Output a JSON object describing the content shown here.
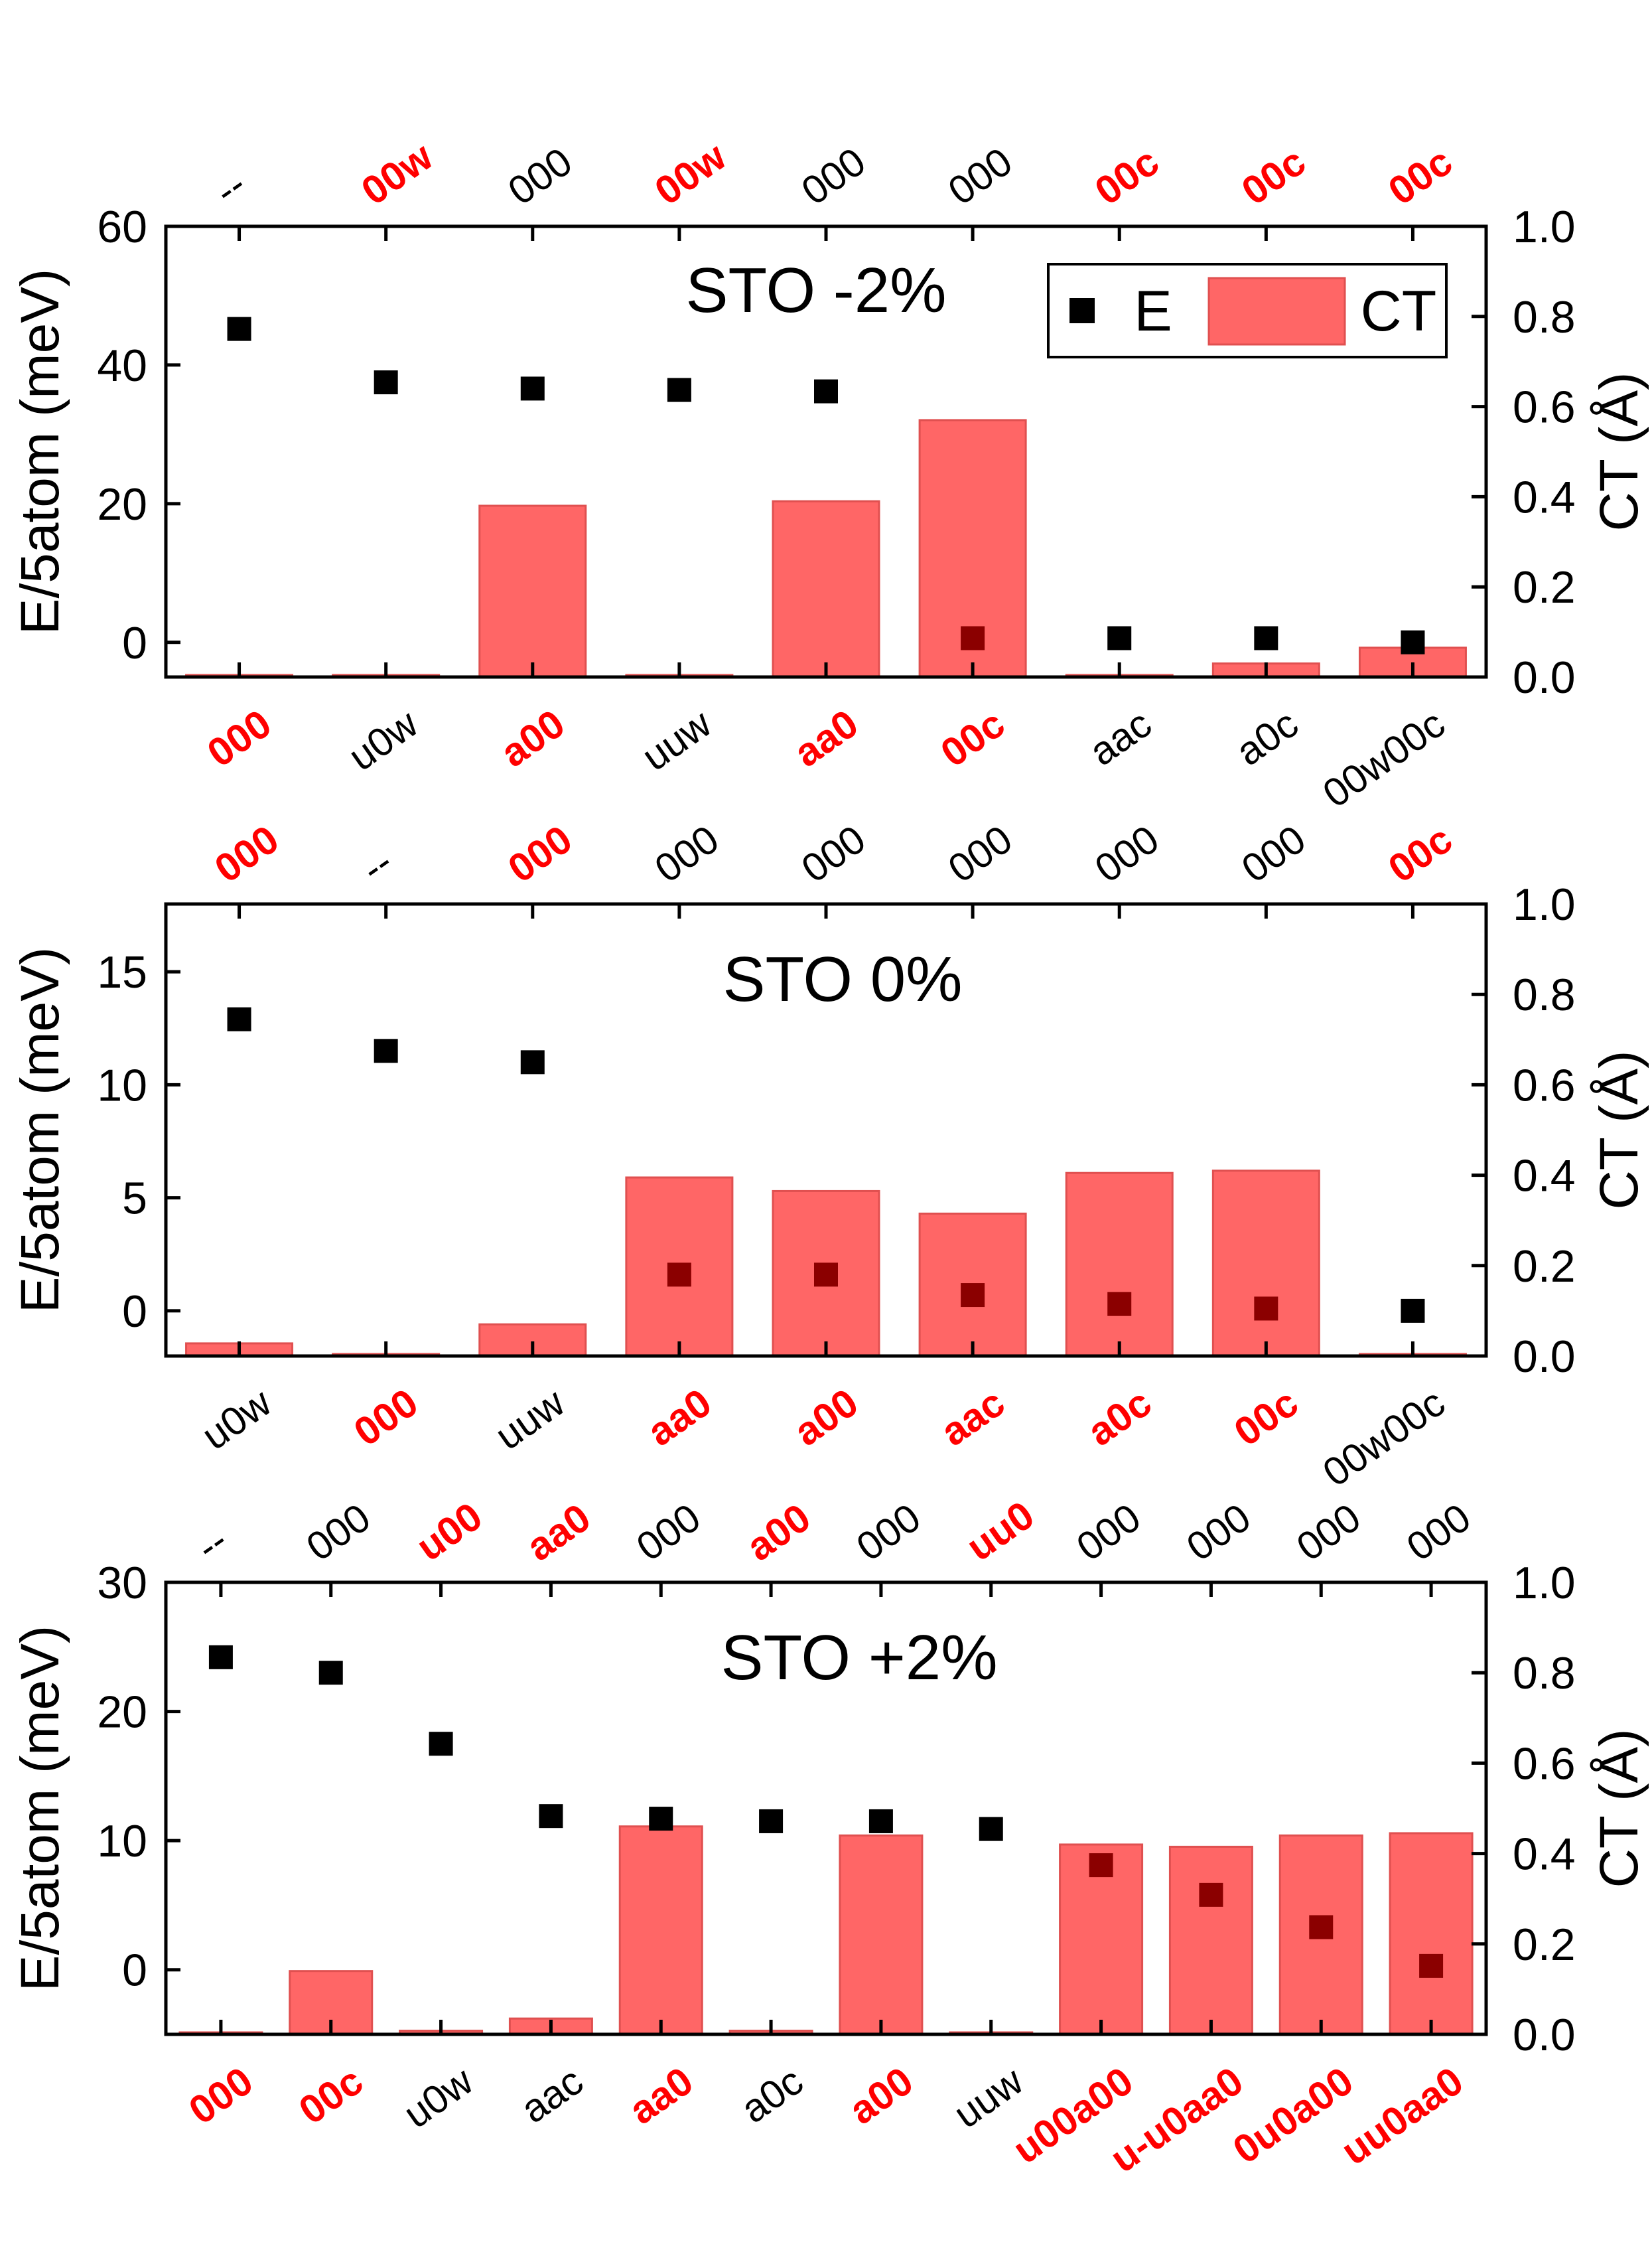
{
  "chart_data": [
    {
      "type": "bar+scatter",
      "title": "STO -2%",
      "ylabel_left": "E/5atom (meV)",
      "ylabel_right": "CT (Å)",
      "ylim_left": [
        -5,
        60
      ],
      "yticks_left": [
        "0",
        "20",
        "40",
        "60"
      ],
      "ylim_right": [
        0,
        1
      ],
      "yticks_right": [
        "0.0",
        "0.2",
        "0.4",
        "0.6",
        "0.8",
        "1.0"
      ],
      "legend": {
        "position": "top-right",
        "items": [
          "E",
          "CT"
        ]
      },
      "categories": [
        {
          "label": "000",
          "top": "--",
          "bottom_red": true,
          "top_red": false,
          "E": 45.2,
          "CT": 0.0
        },
        {
          "label": "u0w",
          "top": "00w",
          "bottom_red": false,
          "top_red": true,
          "E": 37.5,
          "CT": 0.003
        },
        {
          "label": "a00",
          "top": "000",
          "bottom_red": true,
          "top_red": false,
          "E": 36.6,
          "CT": 0.38
        },
        {
          "label": "uuw",
          "top": "00w",
          "bottom_red": false,
          "top_red": true,
          "E": 36.4,
          "CT": 0.003
        },
        {
          "label": "aa0",
          "top": "000",
          "bottom_red": true,
          "top_red": false,
          "E": 36.2,
          "CT": 0.39
        },
        {
          "label": "00c",
          "top": "000",
          "bottom_red": true,
          "top_red": false,
          "E": 0.6,
          "CT": 0.57
        },
        {
          "label": "aac",
          "top": "00c",
          "bottom_red": false,
          "top_red": true,
          "E": 0.6,
          "CT": 0.003
        },
        {
          "label": "a0c",
          "top": "00c",
          "bottom_red": false,
          "top_red": true,
          "E": 0.6,
          "CT": 0.03
        },
        {
          "label": "00w00c",
          "top": "00c",
          "bottom_red": false,
          "top_red": true,
          "E": 0.0,
          "CT": 0.065
        }
      ]
    },
    {
      "type": "bar+scatter",
      "title": "STO 0%",
      "ylabel_left": "E/5atom (meV)",
      "ylabel_right": "CT (Å)",
      "ylim_left": [
        -2,
        18
      ],
      "yticks_left": [
        "0",
        "5",
        "10",
        "15"
      ],
      "ylim_right": [
        0,
        1
      ],
      "yticks_right": [
        "0.0",
        "0.2",
        "0.4",
        "0.6",
        "0.8",
        "1.0"
      ],
      "categories": [
        {
          "label": "u0w",
          "top": "000",
          "bottom_red": false,
          "top_red": true,
          "E": 12.9,
          "CT": 0.028
        },
        {
          "label": "000",
          "top": "--",
          "bottom_red": true,
          "top_red": false,
          "E": 11.5,
          "CT": 0.0
        },
        {
          "label": "uuw",
          "top": "000",
          "bottom_red": false,
          "top_red": true,
          "E": 11.0,
          "CT": 0.07
        },
        {
          "label": "aa0",
          "top": "000",
          "bottom_red": true,
          "top_red": false,
          "E": 1.6,
          "CT": 0.395
        },
        {
          "label": "a00",
          "top": "000",
          "bottom_red": true,
          "top_red": false,
          "E": 1.6,
          "CT": 0.365
        },
        {
          "label": "aac",
          "top": "000",
          "bottom_red": true,
          "top_red": false,
          "E": 0.7,
          "CT": 0.315
        },
        {
          "label": "a0c",
          "top": "000",
          "bottom_red": true,
          "top_red": false,
          "E": 0.3,
          "CT": 0.405
        },
        {
          "label": "00c",
          "top": "000",
          "bottom_red": true,
          "top_red": false,
          "E": 0.1,
          "CT": 0.41
        },
        {
          "label": "00w00c",
          "top": "00c",
          "bottom_red": false,
          "top_red": true,
          "E": 0.0,
          "CT": 0.003
        }
      ]
    },
    {
      "type": "bar+scatter",
      "title": "STO +2%",
      "ylabel_left": "E/5atom (meV)",
      "ylabel_right": "CT (Å)",
      "ylim_left": [
        -5,
        30
      ],
      "yticks_left": [
        "0",
        "10",
        "20",
        "30"
      ],
      "ylim_right": [
        0,
        1
      ],
      "yticks_right": [
        "0.0",
        "0.2",
        "0.4",
        "0.6",
        "0.8",
        "1.0"
      ],
      "categories": [
        {
          "label": "000",
          "top": "--",
          "bottom_red": true,
          "top_red": false,
          "E": 24.2,
          "CT": 0.0
        },
        {
          "label": "00c",
          "top": "000",
          "bottom_red": true,
          "top_red": false,
          "E": 23.0,
          "CT": 0.14
        },
        {
          "label": "u0w",
          "top": "u00",
          "bottom_red": false,
          "top_red": true,
          "E": 17.5,
          "CT": 0.008
        },
        {
          "label": "aac",
          "top": "aa0",
          "bottom_red": false,
          "top_red": true,
          "E": 11.9,
          "CT": 0.035
        },
        {
          "label": "aa0",
          "top": "000",
          "bottom_red": true,
          "top_red": false,
          "E": 11.7,
          "CT": 0.46
        },
        {
          "label": "a0c",
          "top": "a00",
          "bottom_red": false,
          "top_red": true,
          "E": 11.5,
          "CT": 0.008
        },
        {
          "label": "a00",
          "top": "000",
          "bottom_red": true,
          "top_red": false,
          "E": 11.5,
          "CT": 0.44
        },
        {
          "label": "uuw",
          "top": "uu0",
          "bottom_red": false,
          "top_red": true,
          "E": 10.9,
          "CT": 0.003
        },
        {
          "label": "u00a00",
          "top": "000",
          "bottom_red": true,
          "top_red": false,
          "E": 8.1,
          "CT": 0.42
        },
        {
          "label": "u-u0aa0",
          "top": "000",
          "bottom_red": true,
          "top_red": false,
          "E": 5.8,
          "CT": 0.415
        },
        {
          "label": "0u0a00",
          "top": "000",
          "bottom_red": true,
          "top_red": false,
          "E": 3.3,
          "CT": 0.44
        },
        {
          "label": "uu0aa0",
          "top": "000",
          "bottom_red": true,
          "top_red": false,
          "E": 0.3,
          "CT": 0.445
        }
      ]
    }
  ],
  "colors": {
    "bar_fill": "#ff6666",
    "bar_stroke": "#e05050",
    "point": "#000000",
    "point_over_bar": "#8b0000",
    "red_label": "#ff0000",
    "axis": "#000000"
  }
}
